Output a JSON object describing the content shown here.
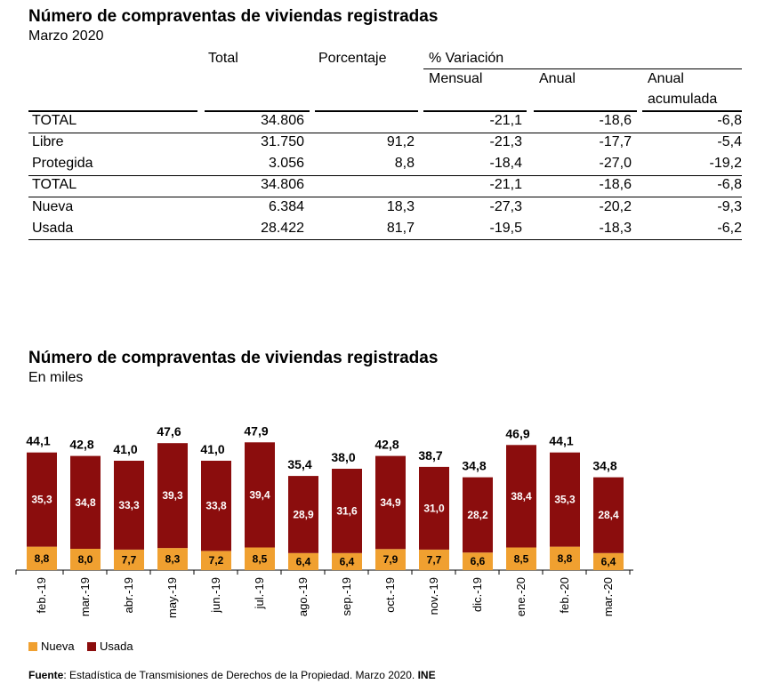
{
  "table": {
    "title": "Número de compraventas de viviendas registradas",
    "subtitle": "Marzo 2020",
    "headers": {
      "total": "Total",
      "porcentaje": "Porcentaje",
      "variacion": "% Variación",
      "mensual": "Mensual",
      "anual": "Anual",
      "anual_acumulada_1": "Anual",
      "anual_acumulada_2": "acumulada"
    },
    "rows": [
      {
        "label": "TOTAL",
        "total": "34.806",
        "pct": "",
        "mensual": "-21,1",
        "anual": "-18,6",
        "acumulada": "-6,8"
      },
      {
        "label": "Libre",
        "total": "31.750",
        "pct": "91,2",
        "mensual": "-21,3",
        "anual": "-17,7",
        "acumulada": "-5,4"
      },
      {
        "label": "Protegida",
        "total": "3.056",
        "pct": "8,8",
        "mensual": "-18,4",
        "anual": "-27,0",
        "acumulada": "-19,2"
      },
      {
        "label": "TOTAL",
        "total": "34.806",
        "pct": "",
        "mensual": "-21,1",
        "anual": "-18,6",
        "acumulada": "-6,8"
      },
      {
        "label": "Nueva",
        "total": "6.384",
        "pct": "18,3",
        "mensual": "-27,3",
        "anual": "-20,2",
        "acumulada": "-9,3"
      },
      {
        "label": "Usada",
        "total": "28.422",
        "pct": "81,7",
        "mensual": "-19,5",
        "anual": "-18,3",
        "acumulada": "-6,2"
      }
    ]
  },
  "chart_data": {
    "type": "bar",
    "stacked": true,
    "title": "Número de compraventas de viviendas registradas",
    "subtitle": "En miles",
    "categories": [
      "feb.-19",
      "mar.-19",
      "abr.-19",
      "may.-19",
      "jun.-19",
      "jul.-19",
      "ago.-19",
      "sep.-19",
      "oct.-19",
      "nov.-19",
      "dic.-19",
      "ene.-20",
      "feb.-20",
      "mar.-20"
    ],
    "series": [
      {
        "name": "Nueva",
        "color": "#f0a030",
        "values": [
          8.8,
          8.0,
          7.7,
          8.3,
          7.2,
          8.5,
          6.4,
          6.4,
          7.9,
          7.7,
          6.6,
          8.5,
          8.8,
          6.4
        ],
        "labels": [
          "8,8",
          "8,0",
          "7,7",
          "8,3",
          "7,2",
          "8,5",
          "6,4",
          "6,4",
          "7,9",
          "7,7",
          "6,6",
          "8,5",
          "8,8",
          "6,4"
        ]
      },
      {
        "name": "Usada",
        "color": "#8b0d0d",
        "values": [
          35.3,
          34.8,
          33.3,
          39.3,
          33.8,
          39.4,
          28.9,
          31.6,
          34.9,
          31.0,
          28.2,
          38.4,
          35.3,
          28.4
        ],
        "labels": [
          "35,3",
          "34,8",
          "33,3",
          "39,3",
          "33,8",
          "39,4",
          "28,9",
          "31,6",
          "34,9",
          "31,0",
          "28,2",
          "38,4",
          "35,3",
          "28,4"
        ]
      }
    ],
    "totals": [
      44.1,
      42.8,
      41.0,
      47.6,
      41.0,
      47.9,
      35.4,
      38.0,
      42.8,
      38.7,
      34.8,
      46.9,
      44.1,
      34.8
    ],
    "total_labels": [
      "44,1",
      "42,8",
      "41,0",
      "47,6",
      "41,0",
      "47,9",
      "35,4",
      "38,0",
      "42,8",
      "38,7",
      "34,8",
      "46,9",
      "44,1",
      "34,8"
    ],
    "legend": "bottom-left",
    "grid": false
  },
  "footer": {
    "source_label": "Fuente",
    "source_text": ": Estadística de Transmisiones de Derechos de la Propiedad. Marzo 2020. ",
    "ine": "INE"
  }
}
